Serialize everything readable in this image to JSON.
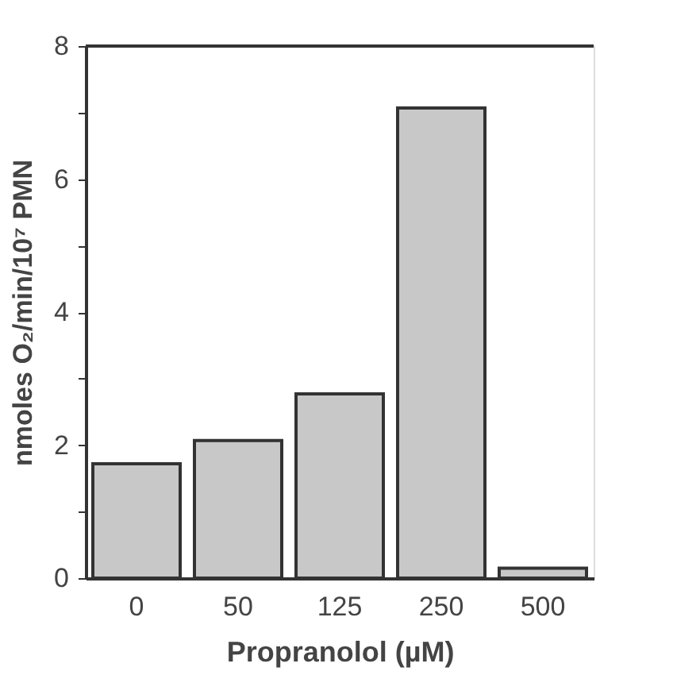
{
  "chart_data": {
    "type": "bar",
    "xlabel": "Propranolol  (µM)",
    "ylabel": "nmoles O₂/min/10⁷ PMN",
    "categories": [
      "0",
      "50",
      "125",
      "250",
      "500"
    ],
    "values": [
      1.72,
      2.07,
      2.77,
      7.07,
      0.15
    ],
    "color": "#c8c8c8",
    "ylim": [
      0,
      8
    ],
    "yticks": [
      0,
      {
        "value": 1,
        "label": null
      },
      2,
      {
        "value": 3,
        "label": null
      },
      4,
      {
        "value": 5,
        "label": null
      },
      6,
      {
        "value": 7,
        "label": null
      },
      8
    ],
    "grid": false
  }
}
